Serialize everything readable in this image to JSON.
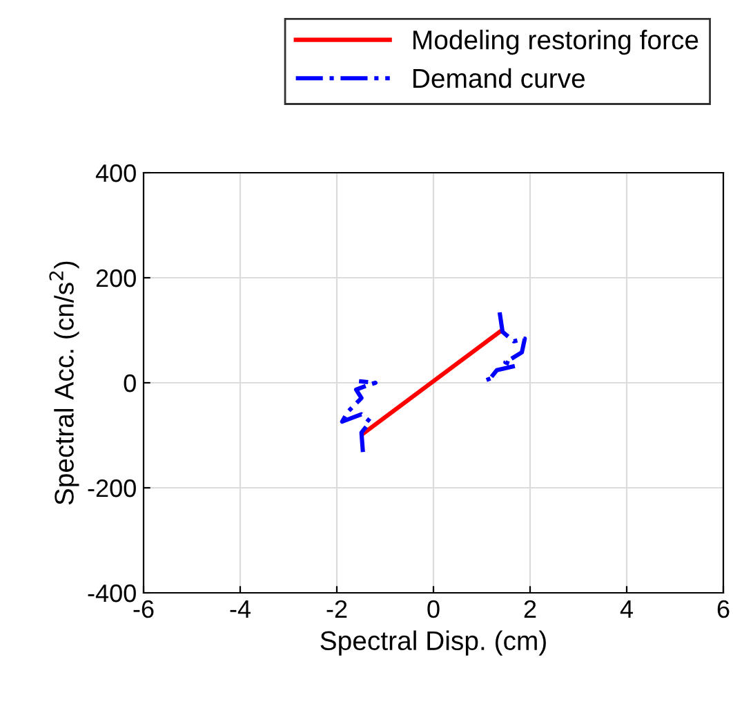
{
  "chart_data": {
    "type": "line",
    "xlabel": "Spectral Disp. (cm)",
    "ylabel": "Spectral Acc. (cn/s$^{2}$)",
    "xlim": [
      -6,
      6
    ],
    "xticks": [
      -6,
      -4,
      -2,
      0,
      2,
      4,
      6
    ],
    "ylim": [
      -400,
      400
    ],
    "yticks": [
      -400,
      -200,
      0,
      200,
      400
    ],
    "grid": true,
    "legend": "top right",
    "series": [
      {
        "name": "Modeling restoring force",
        "color": "#ff0000",
        "line_style": "solid",
        "x": [
          -1.43,
          1.37
        ],
        "values": [
          -95,
          97
        ]
      },
      {
        "name": "Demand curve",
        "color": "#0000ff",
        "line_style": "dashdot",
        "x": [
          -1.46,
          -1.49,
          -1.31,
          -1.49,
          -1.89,
          -1.77,
          -1.49,
          -1.6,
          -1.31,
          -1.2,
          -1.54,
          null,
          1.37,
          1.43,
          1.66,
          1.89,
          1.83,
          1.49,
          1.69,
          1.31,
          1.2,
          1.09,
          1.31
        ],
        "values": [
          -132,
          -95,
          -74,
          -60,
          -74,
          -55,
          -29,
          -13,
          -3,
          0,
          3,
          null,
          134,
          97,
          79,
          84,
          58,
          39,
          32,
          24,
          11,
          5,
          13
        ]
      }
    ]
  }
}
